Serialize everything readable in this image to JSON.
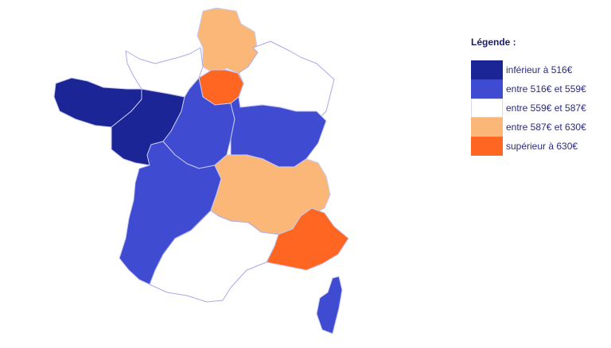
{
  "legend": {
    "title": "Légende :",
    "items": [
      {
        "label": "inférieur à 516€",
        "color": "#1b2596"
      },
      {
        "label": "entre 516€ et 559€",
        "color": "#3f4bd1"
      },
      {
        "label": "entre 559€ et 587€",
        "color": "#ffffff"
      },
      {
        "label": "entre 587€ et 630€",
        "color": "#fbb778"
      },
      {
        "label": "supérieur à 630€",
        "color": "#fe6622"
      }
    ]
  },
  "regions": [
    {
      "name": "Hauts-de-France",
      "class": 3
    },
    {
      "name": "Île-de-France",
      "class": 4
    },
    {
      "name": "Grand Est",
      "class": 2
    },
    {
      "name": "Normandie",
      "class": 2
    },
    {
      "name": "Bretagne",
      "class": 0
    },
    {
      "name": "Pays de la Loire",
      "class": 0
    },
    {
      "name": "Centre-Val de Loire",
      "class": 1
    },
    {
      "name": "Bourgogne-Franche-Comté",
      "class": 1
    },
    {
      "name": "Nouvelle-Aquitaine",
      "class": 1
    },
    {
      "name": "Auvergne-Rhône-Alpes",
      "class": 3
    },
    {
      "name": "Occitanie",
      "class": 2
    },
    {
      "name": "Provence-Alpes-Côte d'Azur",
      "class": 4
    },
    {
      "name": "Corse",
      "class": 1
    }
  ]
}
